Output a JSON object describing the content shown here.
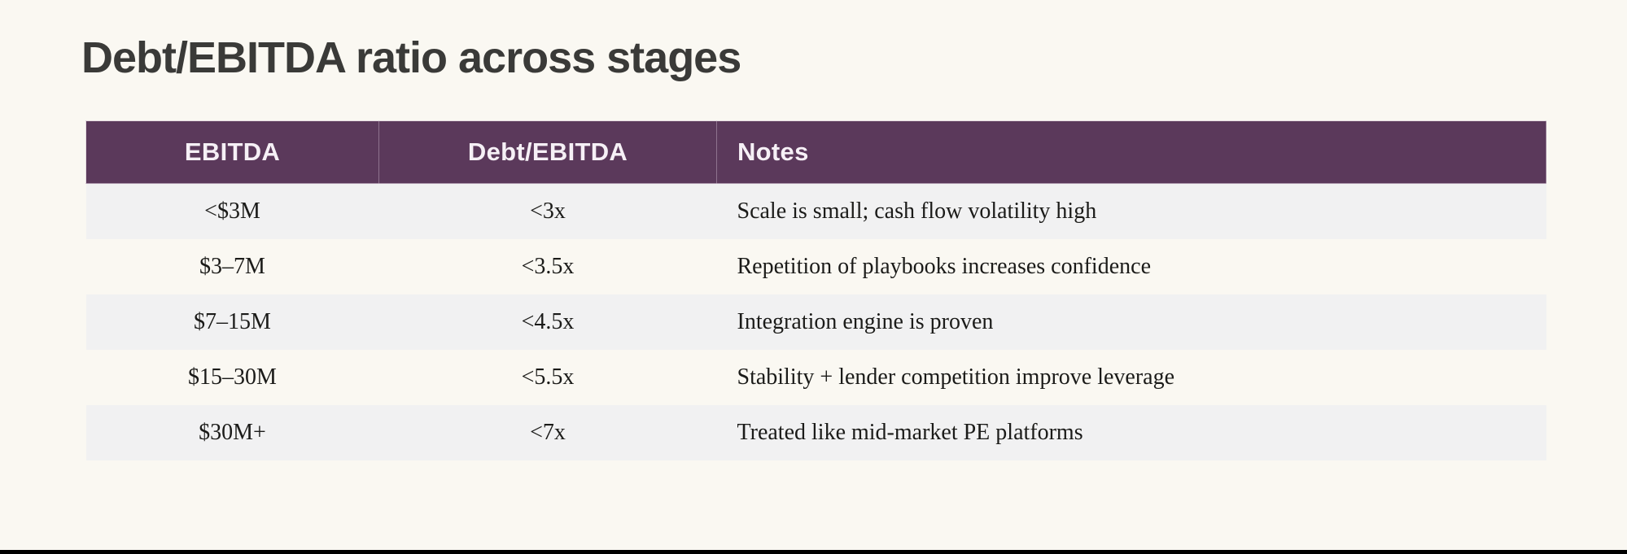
{
  "theme": {
    "page_bg": "#faf8f2",
    "header_bg": "#5b395b",
    "header_text": "#f6f0f6",
    "alt_row_bg": "#f1f1f2",
    "body_text": "#1b1b19",
    "title_text": "#3a3a38",
    "bottom_bar": "#000000"
  },
  "slide": {
    "title": "Debt/EBITDA ratio across stages"
  },
  "table": {
    "headers": [
      "EBITDA",
      "Debt/EBITDA",
      "Notes"
    ],
    "rows": [
      {
        "ebitda": "<$3M",
        "ratio": "<3x",
        "notes": "Scale is small; cash flow volatility high"
      },
      {
        "ebitda": "$3–7M",
        "ratio": "<3.5x",
        "notes": "Repetition of playbooks increases confidence"
      },
      {
        "ebitda": "$7–15M",
        "ratio": "<4.5x",
        "notes": "Integration engine is proven"
      },
      {
        "ebitda": "$15–30M",
        "ratio": "<5.5x",
        "notes": "Stability + lender competition improve leverage"
      },
      {
        "ebitda": "$30M+",
        "ratio": "<7x",
        "notes": "Treated like mid-market PE platforms"
      }
    ]
  },
  "chart_data": {
    "type": "table",
    "title": "Debt/EBITDA ratio across stages",
    "columns": [
      "EBITDA",
      "Debt/EBITDA",
      "Notes"
    ],
    "rows": [
      [
        "<$3M",
        "<3x",
        "Scale is small; cash flow volatility high"
      ],
      [
        "$3–7M",
        "<3.5x",
        "Repetition of playbooks increases confidence"
      ],
      [
        "$7–15M",
        "<4.5x",
        "Integration engine is proven"
      ],
      [
        "$15–30M",
        "<5.5x",
        "Stability + lender competition improve leverage"
      ],
      [
        "$30M+",
        "<7x",
        "Treated like mid-market PE platforms"
      ]
    ]
  }
}
